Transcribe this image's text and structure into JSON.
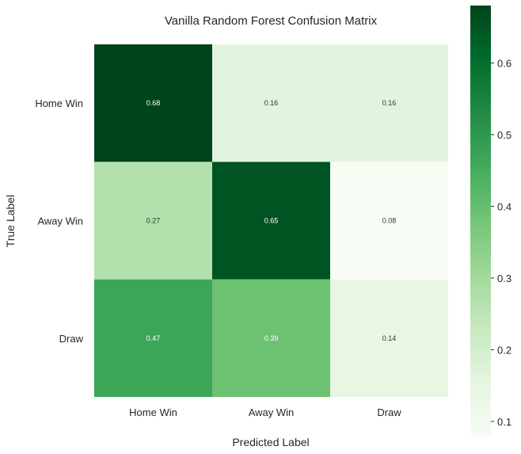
{
  "chart_data": {
    "type": "heatmap",
    "title": "Vanilla Random Forest Confusion Matrix",
    "xlabel": "Predicted Label",
    "ylabel": "True Label",
    "x_categories": [
      "Home Win",
      "Away Win",
      "Draw"
    ],
    "y_categories": [
      "Home Win",
      "Away Win",
      "Draw"
    ],
    "values": [
      [
        0.68,
        0.16,
        0.16
      ],
      [
        0.27,
        0.65,
        0.08
      ],
      [
        0.47,
        0.39,
        0.14
      ]
    ],
    "cell_labels": [
      [
        "0.68",
        "0.16",
        "0.16"
      ],
      [
        "0.27",
        "0.65",
        "0.08"
      ],
      [
        "0.47",
        "0.39",
        "0.14"
      ]
    ],
    "colormap": "Greens",
    "colorbar": {
      "min": 0.08,
      "max": 0.68,
      "ticks": [
        0.1,
        0.2,
        0.3,
        0.4,
        0.5,
        0.6
      ],
      "tick_labels": [
        "0.1",
        "0.2",
        "0.3",
        "0.4",
        "0.5",
        "0.6"
      ]
    },
    "grid": false
  }
}
